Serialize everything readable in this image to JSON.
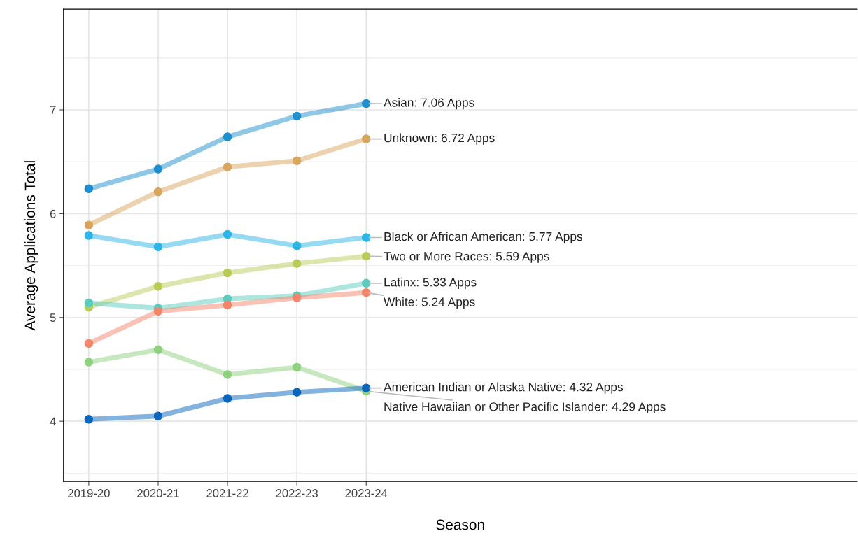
{
  "chart_data": {
    "type": "line",
    "xlabel": "Season",
    "ylabel": "Average Applications Total",
    "categories": [
      "2019-20",
      "2020-21",
      "2021-22",
      "2022-23",
      "2023-24"
    ],
    "ylim": [
      3.42,
      7.97
    ],
    "yticks": [
      4,
      5,
      6,
      7
    ],
    "grid": true,
    "marker": "circle",
    "line_style": "solid",
    "legend": false,
    "series": [
      {
        "color": "#1f8fd0",
        "values": [
          6.24,
          6.43,
          6.74,
          6.94,
          7.06
        ]
      },
      {
        "color": "#d9a55e",
        "values": [
          5.89,
          6.21,
          6.45,
          6.51,
          6.72
        ]
      },
      {
        "color": "#2cb5e6",
        "values": [
          5.79,
          5.68,
          5.8,
          5.69,
          5.77
        ]
      },
      {
        "color": "#b9cc57",
        "values": [
          5.1,
          5.3,
          5.43,
          5.52,
          5.59
        ]
      },
      {
        "color": "#5ccbc0",
        "values": [
          5.14,
          5.09,
          5.18,
          5.21,
          5.33
        ]
      },
      {
        "color": "#f4856a",
        "values": [
          4.75,
          5.06,
          5.12,
          5.19,
          5.24
        ]
      },
      {
        "color": "#8fd17f",
        "values": [
          4.57,
          4.69,
          4.45,
          4.52,
          4.29
        ]
      },
      {
        "color": "#0a66bd",
        "values": [
          4.02,
          4.05,
          4.22,
          4.28,
          4.32
        ]
      }
    ],
    "annotations": [
      {
        "text": "Asian: 7.06 Apps",
        "x": "2023-24",
        "y": 7.06
      },
      {
        "text": "Unknown: 6.72 Apps",
        "x": "2023-24",
        "y": 6.72
      },
      {
        "text": "Black or African American: 5.77 Apps",
        "x": "2023-24",
        "y": 5.77
      },
      {
        "text": "Two or More Races: 5.59 Apps",
        "x": "2023-24",
        "y": 5.59
      },
      {
        "text": "Latinx: 5.33 Apps",
        "x": "2023-24",
        "y": 5.33
      },
      {
        "text": "White: 5.24 Apps",
        "x": "2023-24",
        "y": 5.24
      },
      {
        "text": "American Indian or Alaska Native: 4.32 Apps",
        "x": "2023-24",
        "y": 4.32
      },
      {
        "text": "Native Hawaiian or Other Pacific Islander: 4.29 Apps",
        "x": "2023-24",
        "y": 4.29
      }
    ]
  }
}
